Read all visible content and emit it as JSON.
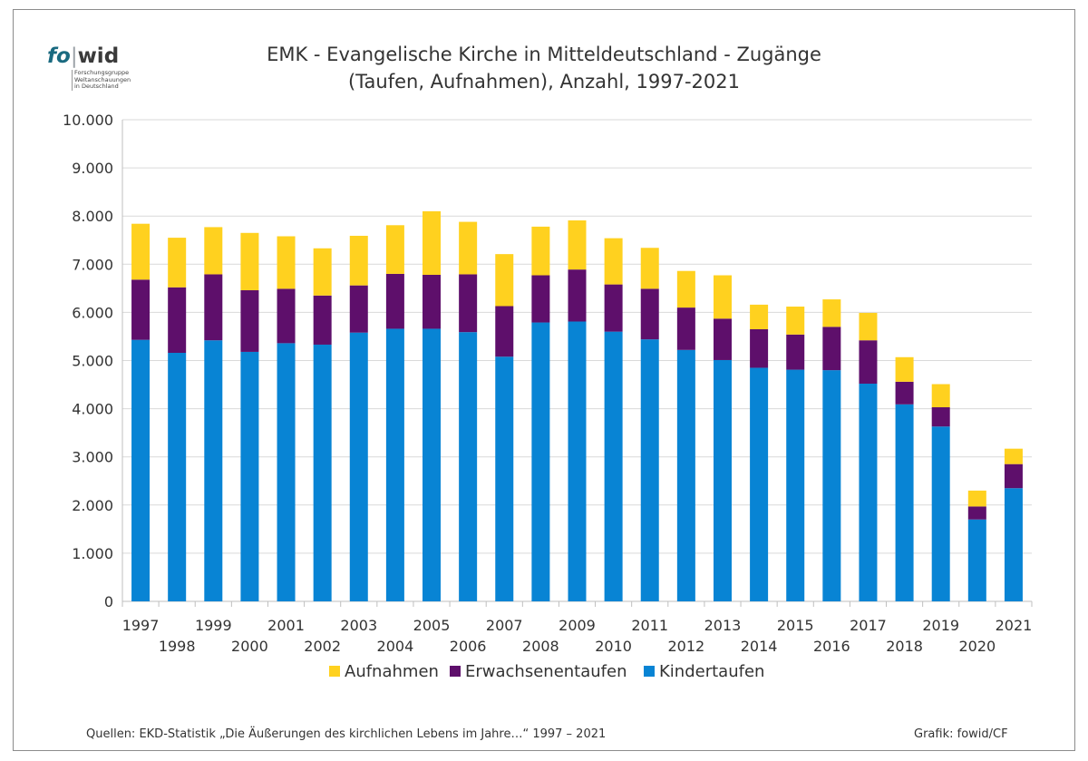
{
  "logo": {
    "word_fo": "fo",
    "word_wid": "wid",
    "sub_lines": [
      "Forschungsgruppe",
      "Weltanschauungen",
      "in Deutschland"
    ]
  },
  "chart_data": {
    "type": "bar",
    "stacked": true,
    "title": "EMK - Evangelische Kirche in Mitteldeutschland - Zugänge",
    "subtitle": "(Taufen, Aufnahmen), Anzahl, 1997-2021",
    "categories": [
      "1997",
      "1998",
      "1999",
      "2000",
      "2001",
      "2002",
      "2003",
      "2004",
      "2005",
      "2006",
      "2007",
      "2008",
      "2009",
      "2010",
      "2011",
      "2012",
      "2013",
      "2014",
      "2015",
      "2016",
      "2017",
      "2018",
      "2019",
      "2020",
      "2021"
    ],
    "series": [
      {
        "name": "Kindertaufen",
        "color": "#0884d4",
        "values": [
          5430,
          5160,
          5420,
          5180,
          5360,
          5330,
          5580,
          5660,
          5660,
          5590,
          5080,
          5790,
          5810,
          5600,
          5440,
          5220,
          5010,
          4850,
          4810,
          4800,
          4520,
          4090,
          3630,
          1700,
          2350
        ]
      },
      {
        "name": "Erwachsenentaufen",
        "color": "#5e0f6b",
        "values": [
          1250,
          1360,
          1370,
          1280,
          1130,
          1020,
          980,
          1140,
          1120,
          1200,
          1050,
          980,
          1080,
          980,
          1050,
          880,
          860,
          800,
          730,
          900,
          900,
          470,
          400,
          270,
          500
        ]
      },
      {
        "name": "Aufnahmen",
        "color": "#ffd11f",
        "values": [
          1160,
          1030,
          980,
          1190,
          1090,
          980,
          1030,
          1010,
          1320,
          1090,
          1080,
          1010,
          1020,
          960,
          850,
          760,
          900,
          510,
          580,
          570,
          570,
          510,
          480,
          330,
          320
        ]
      }
    ],
    "legend_order": [
      "Aufnahmen",
      "Erwachsenentaufen",
      "Kindertaufen"
    ],
    "legend_position": "bottom",
    "ylim": [
      0,
      10000
    ],
    "yticks": [
      "0",
      "1.000",
      "2.000",
      "3.000",
      "4.000",
      "5.000",
      "6.000",
      "7.000",
      "8.000",
      "9.000",
      "10.000"
    ],
    "grid": true,
    "xlabel": "",
    "ylabel": ""
  },
  "footer": {
    "sources": "Quellen: EKD-Statistik „Die Äußerungen des kirchlichen Lebens im Jahre…“ 1997 – 2021",
    "credit": "Grafik: fowid/CF"
  }
}
